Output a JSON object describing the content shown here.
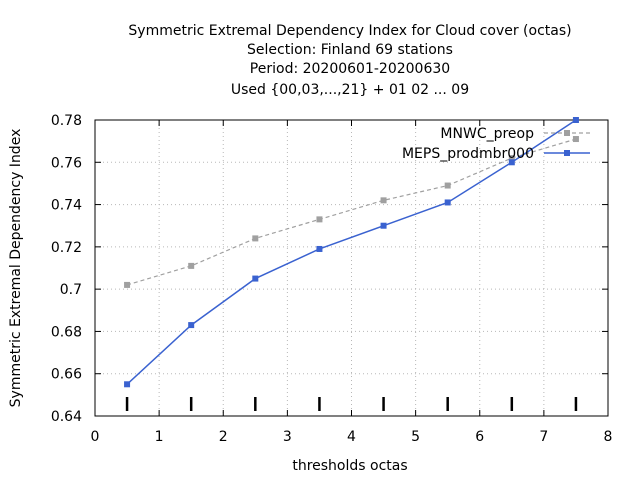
{
  "chart_data": {
    "type": "line",
    "title_lines": [
      "Symmetric Extremal Dependency Index  for Cloud cover (octas)",
      "Selection: Finland     69 stations",
      "Period: 20200601-20200630",
      "Used {00,03,...,21} + 01 02 ... 09"
    ],
    "xlabel": "thresholds octas",
    "ylabel": "Symmetric Extremal Dependency Index",
    "xlim": [
      0,
      8
    ],
    "ylim": [
      0.64,
      0.78
    ],
    "x_ticks": [
      "0",
      "1",
      "2",
      "3",
      "4",
      "5",
      "6",
      "7",
      "8"
    ],
    "y_ticks": [
      "0.64",
      "0.66",
      "0.68",
      "0.7",
      "0.72",
      "0.74",
      "0.76",
      "0.78"
    ],
    "x_tick_values": [
      0,
      1,
      2,
      3,
      4,
      5,
      6,
      7,
      8
    ],
    "y_tick_values": [
      0.64,
      0.66,
      0.68,
      0.7,
      0.72,
      0.74,
      0.76,
      0.78
    ],
    "x": [
      0.5,
      1.5,
      2.5,
      3.5,
      4.5,
      5.5,
      6.5,
      7.5
    ],
    "grid": true,
    "legend_position": "top-right",
    "series": [
      {
        "name": "MNWC_preop",
        "color": "#a0a0a0",
        "style": "dashed",
        "values": [
          0.702,
          0.711,
          0.724,
          0.733,
          0.742,
          0.749,
          0.762,
          0.771
        ]
      },
      {
        "name": "MEPS_prodmbr000",
        "color": "#3a62d0",
        "style": "solid",
        "values": [
          0.655,
          0.683,
          0.705,
          0.719,
          0.73,
          0.741,
          0.76,
          0.78
        ]
      }
    ],
    "sample_markers_x": [
      0.5,
      1.5,
      2.5,
      3.5,
      4.5,
      5.5,
      6.5,
      7.5
    ]
  }
}
